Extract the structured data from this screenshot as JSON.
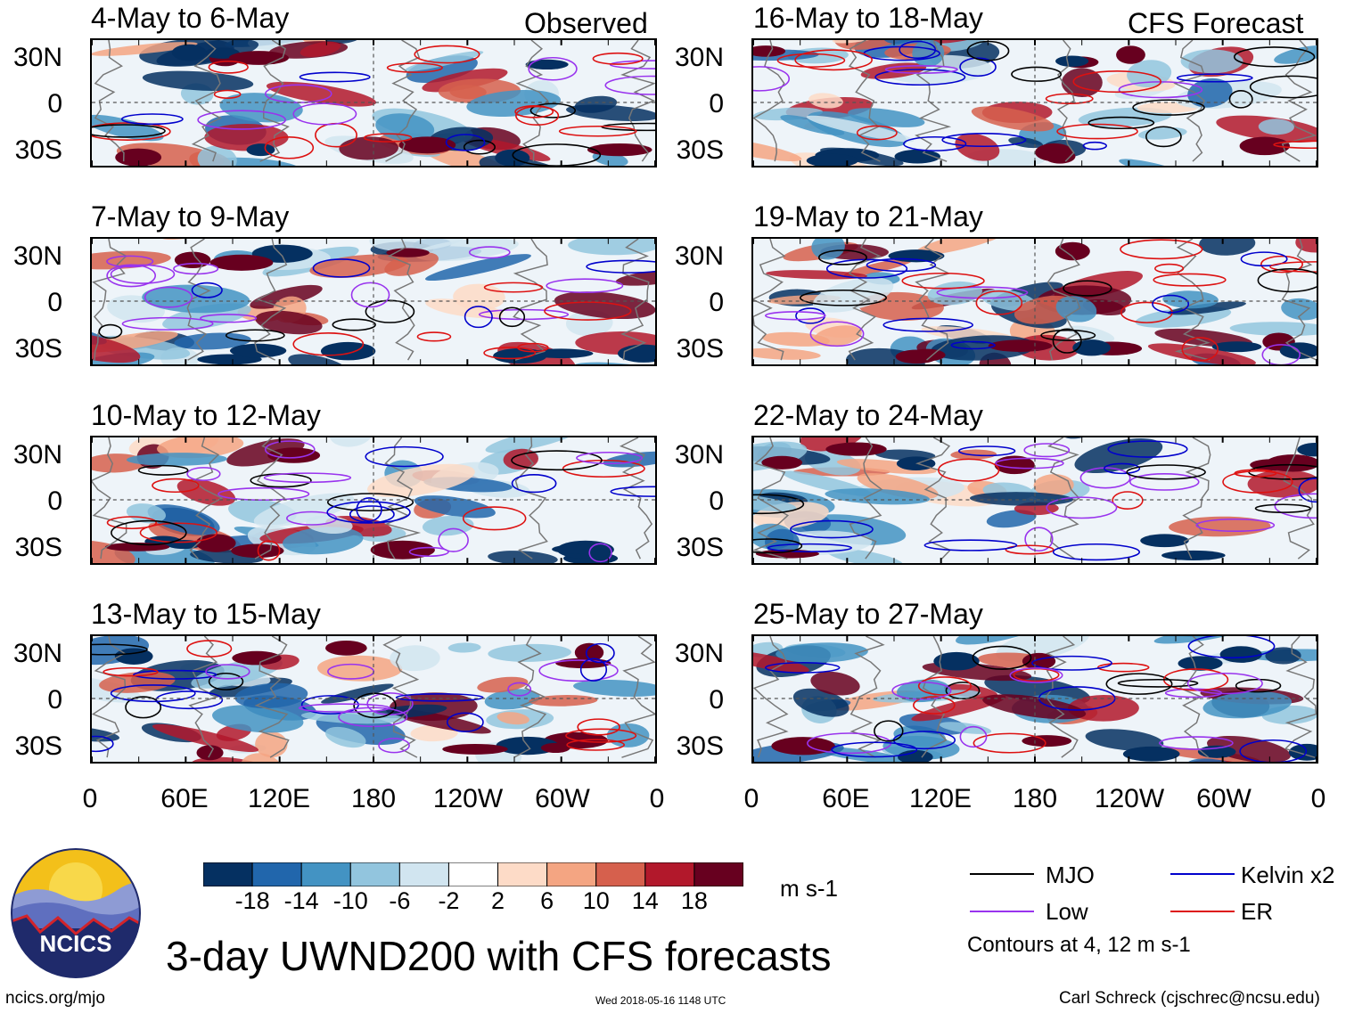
{
  "header": {
    "observed_label": "Observed",
    "forecast_label": "CFS Forecast"
  },
  "chart_data": {
    "type": "heatmap",
    "title": "3-day UWND200 with CFS forecasts",
    "variable": "200-hPa zonal wind anomaly",
    "units": "m s-1",
    "lat_ticks": [
      "30N",
      "0",
      "30S"
    ],
    "lon_ticks": [
      "0",
      "60E",
      "120E",
      "180",
      "120W",
      "60W",
      "0"
    ],
    "colorbar": {
      "levels": [
        "-18",
        "-14",
        "-10",
        "-6",
        "-2",
        "2",
        "6",
        "10",
        "14",
        "18"
      ],
      "colors": [
        "#053061",
        "#2166ac",
        "#4393c3",
        "#92c5de",
        "#d1e5f0",
        "#ffffff",
        "#fddbc7",
        "#f4a582",
        "#d6604d",
        "#b2182b",
        "#67001f"
      ]
    },
    "panels_observed": [
      {
        "title": "4-May to 6-May"
      },
      {
        "title": "7-May to 9-May"
      },
      {
        "title": "10-May to 12-May"
      },
      {
        "title": "13-May to 15-May"
      }
    ],
    "panels_forecast": [
      {
        "title": "16-May to 18-May"
      },
      {
        "title": "19-May to 21-May"
      },
      {
        "title": "22-May to 24-May"
      },
      {
        "title": "25-May to 27-May"
      }
    ],
    "legend": [
      {
        "label": "MJO",
        "color": "#000000"
      },
      {
        "label": "Kelvin x2",
        "color": "#0000cc"
      },
      {
        "label": "Low",
        "color": "#9933ee"
      },
      {
        "label": "ER",
        "color": "#dd1111"
      }
    ],
    "contour_note": "Contours at 4, 12 m s-1"
  },
  "footer": {
    "logo_text": "NCICS",
    "url": "ncics.org/mjo",
    "timestamp": "Wed 2018-05-16 1148 UTC",
    "author": "Carl Schreck (cjschrec@ncsu.edu)"
  }
}
